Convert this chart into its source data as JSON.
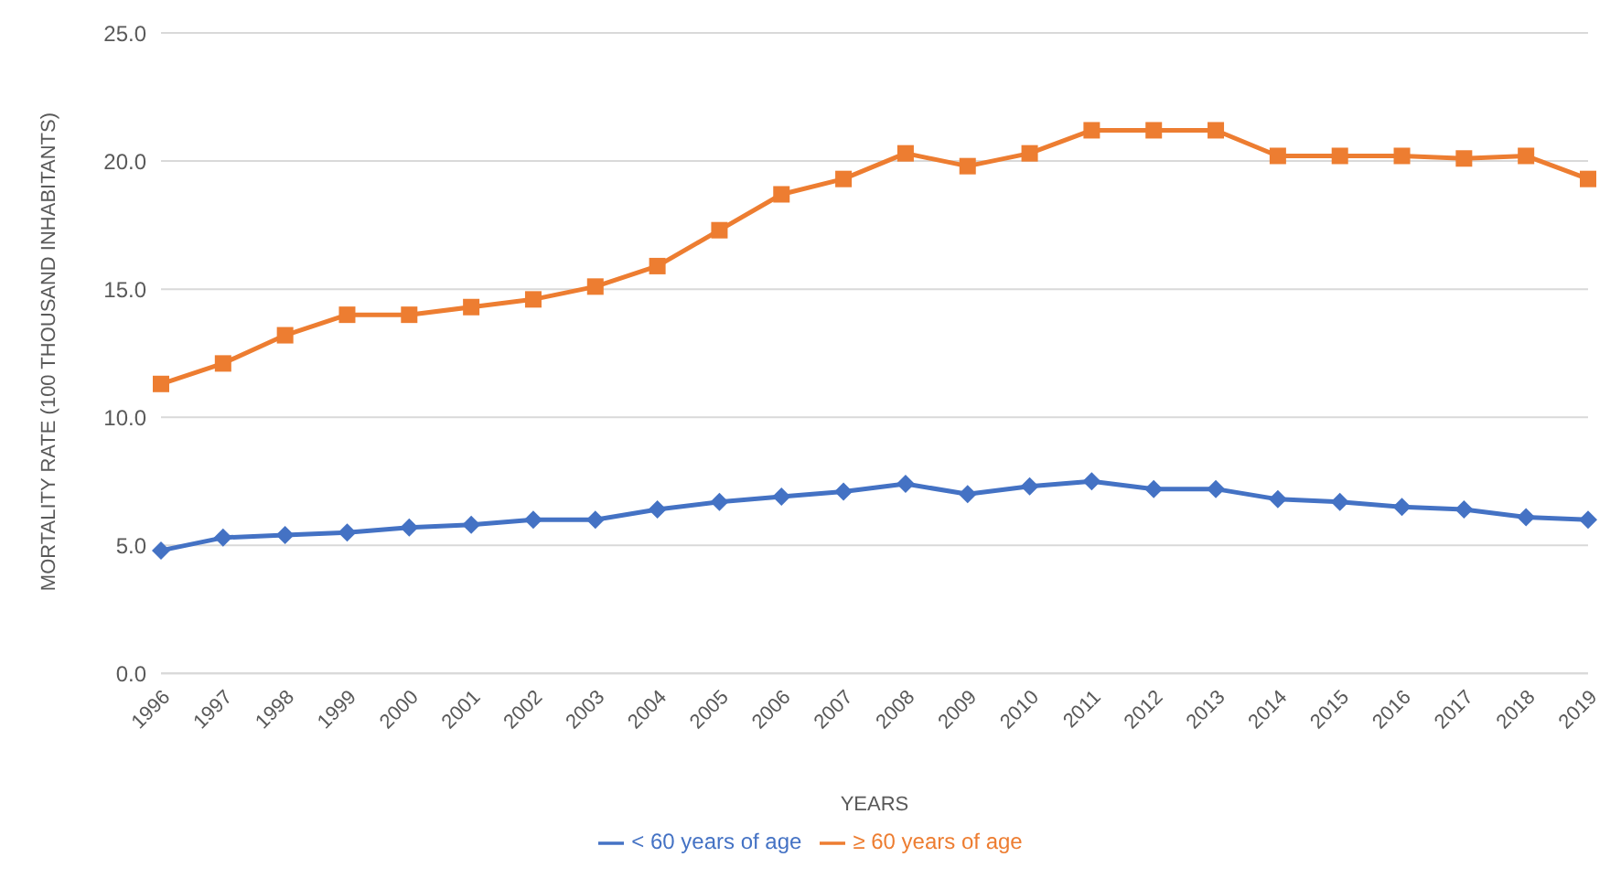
{
  "chart_data": {
    "type": "line",
    "xlabel": "YEARS",
    "ylabel": "MORTALITY RATE (100 THOUSAND INHABITANTS)",
    "categories": [
      "1996",
      "1997",
      "1998",
      "1999",
      "2000",
      "2001",
      "2002",
      "2003",
      "2004",
      "2005",
      "2006",
      "2007",
      "2008",
      "2009",
      "2010",
      "2011",
      "2012",
      "2013",
      "2014",
      "2015",
      "2016",
      "2017",
      "2018",
      "2019"
    ],
    "series": [
      {
        "name": "< 60 years of age",
        "color": "#4472c4",
        "marker": "diamond",
        "values": [
          4.8,
          5.3,
          5.4,
          5.5,
          5.7,
          5.8,
          6.0,
          6.0,
          6.4,
          6.7,
          6.9,
          7.1,
          7.4,
          7.0,
          7.3,
          7.5,
          7.2,
          7.2,
          6.8,
          6.7,
          6.5,
          6.4,
          6.1,
          6.0
        ]
      },
      {
        "name": "≥ 60 years of age",
        "color": "#ed7d31",
        "marker": "square",
        "values": [
          11.3,
          12.1,
          13.2,
          14.0,
          14.0,
          14.3,
          14.6,
          15.1,
          15.9,
          17.3,
          18.7,
          19.3,
          20.3,
          19.8,
          20.3,
          21.2,
          21.2,
          21.2,
          20.2,
          20.2,
          20.2,
          20.1,
          20.2,
          19.3
        ]
      }
    ],
    "ylim": [
      0,
      25
    ],
    "yticks": [
      {
        "value": 0,
        "label": "0.0"
      },
      {
        "value": 5,
        "label": "5.0"
      },
      {
        "value": 10,
        "label": "10.0"
      },
      {
        "value": 15,
        "label": "15.0"
      },
      {
        "value": 20,
        "label": "20.0"
      },
      {
        "value": 25,
        "label": "25.0"
      }
    ],
    "grid": "y",
    "legend": "bottom"
  }
}
